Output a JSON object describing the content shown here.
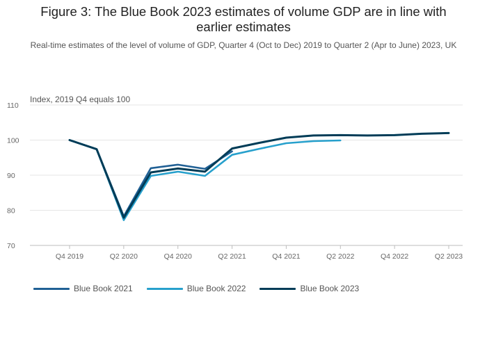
{
  "chart_data": {
    "type": "line",
    "title_lines": [
      "Figure 3: The Blue Book 2023 estimates of volume GDP are in line with",
      "earlier estimates"
    ],
    "subtitle": "Real-time estimates of the level of volume of GDP, Quarter 4 (Oct to Dec) 2019 to Quarter 2 (Apr to June) 2023, UK",
    "ylabel": "Index, 2019 Q4 equals 100",
    "ylim": [
      70,
      110
    ],
    "yticks": [
      70,
      80,
      90,
      100,
      110
    ],
    "x": [
      "Q4 2019",
      "Q1 2020",
      "Q2 2020",
      "Q3 2020",
      "Q4 2020",
      "Q1 2021",
      "Q2 2021",
      "Q3 2021",
      "Q4 2021",
      "Q1 2022",
      "Q2 2022",
      "Q3 2022",
      "Q4 2022",
      "Q1 2023",
      "Q2 2023"
    ],
    "xtick_labels": [
      "Q4 2019",
      "Q2 2020",
      "Q4 2020",
      "Q2 2021",
      "Q4 2021",
      "Q2 2022",
      "Q4 2022",
      "Q2 2023"
    ],
    "series": [
      {
        "name": "Blue Book 2021",
        "color": "#206095",
        "values": [
          100,
          97.4,
          78.3,
          92.0,
          93.0,
          91.8,
          96.8,
          null,
          null,
          null,
          null,
          null,
          null,
          null,
          null
        ]
      },
      {
        "name": "Blue Book 2022",
        "color": "#27A0CC",
        "values": [
          100,
          97.4,
          77.2,
          89.8,
          91.0,
          89.8,
          95.8,
          97.5,
          99.1,
          99.7,
          99.9,
          null,
          null,
          null,
          null
        ]
      },
      {
        "name": "Blue Book 2023",
        "color": "#003C57",
        "values": [
          100,
          97.4,
          77.9,
          90.8,
          91.9,
          91.0,
          97.6,
          99.2,
          100.7,
          101.3,
          101.4,
          101.3,
          101.4,
          101.8,
          102.0
        ]
      }
    ],
    "grid": true,
    "legend_position": "bottom-left"
  }
}
